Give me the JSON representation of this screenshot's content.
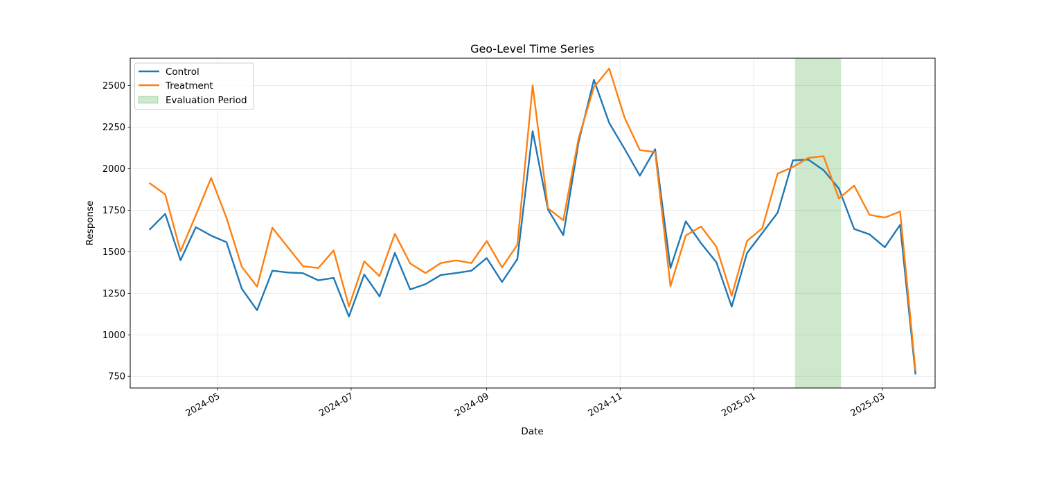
{
  "chart_data": {
    "type": "line",
    "title": "Geo-Level Time Series",
    "xlabel": "Date",
    "ylabel": "Response",
    "x": [
      "2024-03-31",
      "2024-04-07",
      "2024-04-14",
      "2024-04-21",
      "2024-04-28",
      "2024-05-05",
      "2024-05-12",
      "2024-05-19",
      "2024-05-26",
      "2024-06-02",
      "2024-06-09",
      "2024-06-16",
      "2024-06-23",
      "2024-06-30",
      "2024-07-07",
      "2024-07-14",
      "2024-07-21",
      "2024-07-28",
      "2024-08-04",
      "2024-08-11",
      "2024-08-18",
      "2024-08-25",
      "2024-09-01",
      "2024-09-08",
      "2024-09-15",
      "2024-09-22",
      "2024-09-29",
      "2024-10-06",
      "2024-10-13",
      "2024-10-20",
      "2024-10-27",
      "2024-11-03",
      "2024-11-10",
      "2024-11-17",
      "2024-11-24",
      "2024-12-01",
      "2024-12-08",
      "2024-12-15",
      "2024-12-22",
      "2024-12-29",
      "2025-01-05",
      "2025-01-12",
      "2025-01-19",
      "2025-01-26",
      "2025-02-02",
      "2025-02-09",
      "2025-02-16",
      "2025-02-23",
      "2025-03-02",
      "2025-03-09",
      "2025-03-16"
    ],
    "series": [
      {
        "name": "Control",
        "color": "#1f77b4",
        "values": [
          1635,
          1728,
          1449,
          1648,
          1597,
          1558,
          1278,
          1148,
          1386,
          1375,
          1371,
          1328,
          1343,
          1110,
          1363,
          1231,
          1493,
          1273,
          1305,
          1360,
          1372,
          1386,
          1462,
          1318,
          1456,
          2226,
          1755,
          1600,
          2160,
          2535,
          2275,
          2120,
          1958,
          2117,
          1402,
          1683,
          1551,
          1437,
          1170,
          1492,
          1613,
          1735,
          2050,
          2055,
          1991,
          1881,
          1637,
          1605,
          1527,
          1662,
          767
        ]
      },
      {
        "name": "Treatment",
        "color": "#ff7f0e",
        "values": [
          1912,
          1845,
          1503,
          1720,
          1944,
          1705,
          1410,
          1290,
          1645,
          1528,
          1413,
          1402,
          1508,
          1171,
          1442,
          1353,
          1608,
          1430,
          1372,
          1432,
          1448,
          1432,
          1565,
          1406,
          1542,
          2502,
          1762,
          1690,
          2183,
          2490,
          2603,
          2308,
          2112,
          2100,
          1293,
          1598,
          1652,
          1530,
          1235,
          1565,
          1642,
          1970,
          2010,
          2065,
          2075,
          1821,
          1898,
          1722,
          1706,
          1742,
          790
        ]
      }
    ],
    "highlight": {
      "label": "Evaluation Period",
      "start": "2025-01-20",
      "end": "2025-02-10",
      "color": "#2ca02c"
    },
    "x_ticks": [
      "2024-05",
      "2024-07",
      "2024-09",
      "2024-11",
      "2025-01",
      "2025-03"
    ],
    "xlim": [
      "2024-03-22",
      "2025-03-25"
    ],
    "ylim": [
      680,
      2665
    ],
    "y_ticks": [
      750,
      1000,
      1250,
      1500,
      1750,
      2000,
      2250,
      2500
    ],
    "grid": true,
    "legend_position": "top-left"
  }
}
